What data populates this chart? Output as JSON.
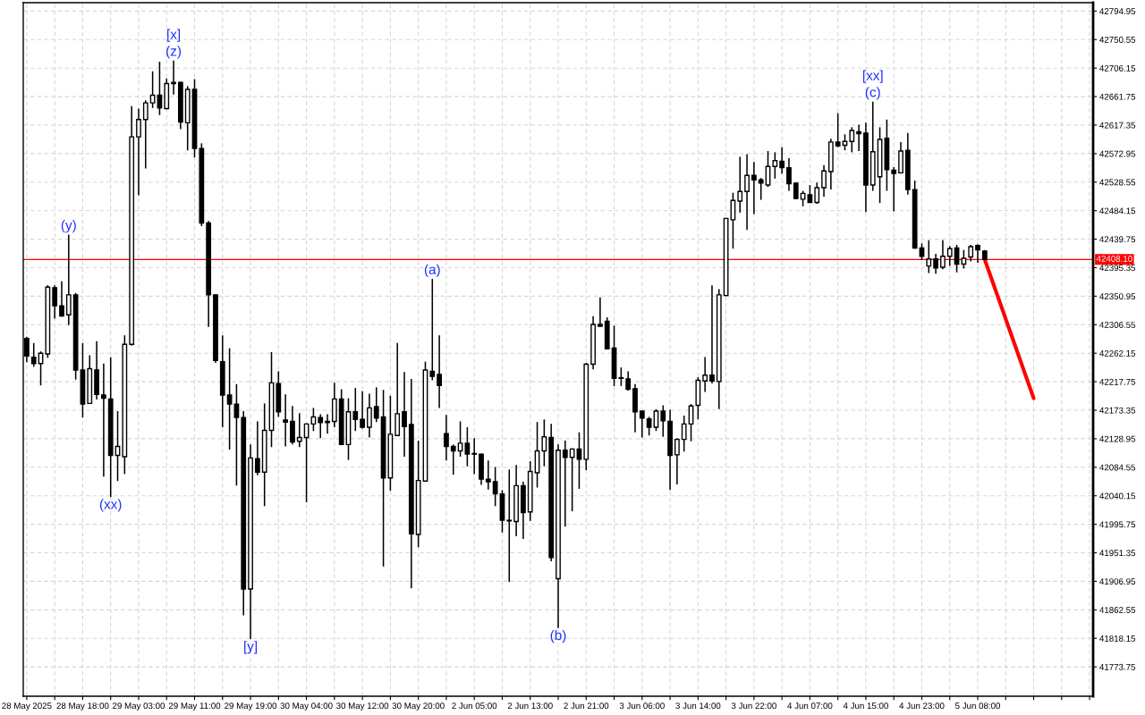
{
  "chart_data": {
    "type": "candlestick",
    "categories": [
      "28 May 2025",
      null,
      null,
      null,
      null,
      null,
      null,
      null,
      "28 May 18:00",
      null,
      null,
      null,
      null,
      null,
      null,
      null,
      "29 May 03:00",
      null,
      null,
      null,
      null,
      null,
      null,
      null,
      "29 May 11:00",
      null,
      null,
      null,
      null,
      null,
      null,
      null,
      "29 May 19:00",
      null,
      null,
      null,
      null,
      null,
      null,
      null,
      "30 May 04:00",
      null,
      null,
      null,
      null,
      null,
      null,
      null,
      "30 May 12:00",
      null,
      null,
      null,
      null,
      null,
      null,
      null,
      "30 May 20:00",
      null,
      null,
      null,
      null,
      null,
      null,
      null,
      "2 Jun 05:00",
      null,
      null,
      null,
      null,
      null,
      null,
      null,
      "2 Jun 13:00",
      null,
      null,
      null,
      null,
      null,
      null,
      null,
      "2 Jun 21:00",
      null,
      null,
      null,
      null,
      null,
      null,
      null,
      "3 Jun 06:00",
      null,
      null,
      null,
      null,
      null,
      null,
      null,
      "3 Jun 14:00",
      null,
      null,
      null,
      null,
      null,
      null,
      null,
      "3 Jun 22:00",
      null,
      null,
      null,
      null,
      null,
      null,
      null,
      "4 Jun 07:00",
      null,
      null,
      null,
      null,
      null,
      null,
      null,
      "4 Jun 15:00",
      null,
      null,
      null,
      null,
      null,
      null,
      null,
      "4 Jun 23:00",
      null,
      null,
      null,
      null,
      null,
      null,
      null,
      "5 Jun 08:00",
      null,
      null,
      null,
      null,
      null,
      null,
      null,
      null,
      null,
      null,
      null,
      null,
      null,
      null,
      null,
      null
    ],
    "ohlc": [
      [
        42285,
        42288,
        42248,
        42258
      ],
      [
        42256,
        42278,
        42241,
        42246
      ],
      [
        42246,
        42265,
        42212,
        42262
      ],
      [
        42261,
        42368,
        42255,
        42365
      ],
      [
        42364,
        42368,
        42316,
        42336
      ],
      [
        42336,
        42374,
        42319,
        42320
      ],
      [
        42322,
        42447,
        42306,
        42353
      ],
      [
        42353,
        42356,
        42221,
        42236
      ],
      [
        42236,
        42278,
        42162,
        42183
      ],
      [
        42184,
        42259,
        42183,
        42238
      ],
      [
        42236,
        42281,
        42190,
        42198
      ],
      [
        42197,
        42246,
        42070,
        42192
      ],
      [
        42191,
        42256,
        42038,
        42103
      ],
      [
        42103,
        42172,
        42063,
        42117
      ],
      [
        42101,
        42290,
        42074,
        42276
      ],
      [
        42276,
        42647,
        42274,
        42599
      ],
      [
        42599,
        42643,
        42508,
        42626
      ],
      [
        42626,
        42656,
        42550,
        42652
      ],
      [
        42652,
        42701,
        42644,
        42664
      ],
      [
        42664,
        42716,
        42633,
        42644
      ],
      [
        42643,
        42690,
        42642,
        42682
      ],
      [
        42682,
        42718,
        42665,
        42684
      ],
      [
        42684,
        42685,
        42611,
        42622
      ],
      [
        42621,
        42678,
        42578,
        42673
      ],
      [
        42673,
        42689,
        42567,
        42581
      ],
      [
        42581,
        42589,
        42460,
        42465
      ],
      [
        42465,
        42468,
        42303,
        42353
      ],
      [
        42353,
        42354,
        42247,
        42251
      ],
      [
        42249,
        42290,
        42147,
        42197
      ],
      [
        42197,
        42270,
        42112,
        42183
      ],
      [
        42183,
        42214,
        42056,
        42162
      ],
      [
        42162,
        42172,
        41854,
        41895
      ],
      [
        41895,
        42120,
        41817,
        42099
      ],
      [
        42098,
        42156,
        42072,
        42077
      ],
      [
        42077,
        42184,
        42024,
        42142
      ],
      [
        42142,
        42264,
        42116,
        42216
      ],
      [
        42215,
        42234,
        42163,
        42171
      ],
      [
        42158,
        42198,
        42117,
        42155
      ],
      [
        42156,
        42180,
        42120,
        42124
      ],
      [
        42125,
        42169,
        42116,
        42131
      ],
      [
        42131,
        42153,
        42030,
        42152
      ],
      [
        42152,
        42177,
        42141,
        42163
      ],
      [
        42162,
        42167,
        42130,
        42154
      ],
      [
        42156,
        42167,
        42137,
        42154
      ],
      [
        42156,
        42216,
        42147,
        42191
      ],
      [
        42191,
        42206,
        42119,
        42120
      ],
      [
        42120,
        42192,
        42096,
        42171
      ],
      [
        42171,
        42208,
        42141,
        42159
      ],
      [
        42159,
        42203,
        42145,
        42147
      ],
      [
        42147,
        42199,
        42131,
        42177
      ],
      [
        42179,
        42209,
        42155,
        42161
      ],
      [
        42163,
        42205,
        41930,
        42068
      ],
      [
        42068,
        42196,
        42048,
        42136
      ],
      [
        42134,
        42278,
        42133,
        42168
      ],
      [
        42171,
        42233,
        42101,
        42148
      ],
      [
        42151,
        42222,
        41896,
        41981
      ],
      [
        41980,
        42126,
        41960,
        42064
      ],
      [
        42063,
        42249,
        42062,
        42236
      ],
      [
        42234,
        42378,
        42220,
        42226
      ],
      [
        42229,
        42290,
        42177,
        42212
      ],
      [
        42137,
        42166,
        42095,
        42117
      ],
      [
        42117,
        42120,
        42073,
        42110
      ],
      [
        42110,
        42156,
        42101,
        42122
      ],
      [
        42122,
        42147,
        42086,
        42105
      ],
      [
        42106,
        42130,
        42074,
        42105
      ],
      [
        42105,
        42106,
        42057,
        42066
      ],
      [
        42066,
        42095,
        42050,
        42062
      ],
      [
        42062,
        42085,
        42024,
        42043
      ],
      [
        42043,
        42049,
        41983,
        42002
      ],
      [
        42002,
        42081,
        41906,
        42001
      ],
      [
        42000,
        42088,
        41977,
        42056
      ],
      [
        42056,
        42062,
        41973,
        42014
      ],
      [
        42015,
        42094,
        42001,
        42078
      ],
      [
        42076,
        42155,
        42053,
        42110
      ],
      [
        42110,
        42159,
        42086,
        42132
      ],
      [
        42131,
        42152,
        41938,
        41944
      ],
      [
        41911,
        42120,
        41834,
        42111
      ],
      [
        42111,
        42126,
        41992,
        42100
      ],
      [
        42100,
        42114,
        42016,
        42113
      ],
      [
        42113,
        42139,
        42051,
        42097
      ],
      [
        42097,
        42247,
        42080,
        42245
      ],
      [
        42245,
        42320,
        42237,
        42307
      ],
      [
        42307,
        42349,
        42304,
        42304
      ],
      [
        42312,
        42318,
        42269,
        42269
      ],
      [
        42270,
        42305,
        42211,
        42223
      ],
      [
        42224,
        42240,
        42211,
        42223
      ],
      [
        42222,
        42234,
        42204,
        42206
      ],
      [
        42207,
        42214,
        42139,
        42171
      ],
      [
        42172,
        42173,
        42131,
        42161
      ],
      [
        42160,
        42163,
        42134,
        42147
      ],
      [
        42147,
        42175,
        42141,
        42172
      ],
      [
        42172,
        42181,
        42132,
        42157
      ],
      [
        42156,
        42174,
        42049,
        42103
      ],
      [
        42104,
        42130,
        42058,
        42128
      ],
      [
        42128,
        42165,
        42109,
        42152
      ],
      [
        42152,
        42183,
        42125,
        42180
      ],
      [
        42181,
        42225,
        42159,
        42220
      ],
      [
        42219,
        42256,
        42202,
        42228
      ],
      [
        42228,
        42368,
        42215,
        42219
      ],
      [
        42218,
        42362,
        42175,
        42353
      ],
      [
        42352,
        42472,
        42351,
        42472
      ],
      [
        42470,
        42512,
        42425,
        42500
      ],
      [
        42499,
        42568,
        42481,
        42514
      ],
      [
        42514,
        42572,
        42454,
        42539
      ],
      [
        42539,
        42560,
        42479,
        42532
      ],
      [
        42532,
        42535,
        42501,
        42527
      ],
      [
        42524,
        42577,
        42521,
        42553
      ],
      [
        42553,
        42575,
        42534,
        42562
      ],
      [
        42561,
        42583,
        42542,
        42551
      ],
      [
        42551,
        42566,
        42515,
        42526
      ],
      [
        42527,
        42528,
        42502,
        42503
      ],
      [
        42502,
        42515,
        42491,
        42511
      ],
      [
        42509,
        42524,
        42497,
        42497
      ],
      [
        42497,
        42528,
        42495,
        42520
      ],
      [
        42520,
        42555,
        42506,
        42546
      ],
      [
        42545,
        42596,
        42517,
        42591
      ],
      [
        42591,
        42636,
        42583,
        42585
      ],
      [
        42586,
        42603,
        42578,
        42592
      ],
      [
        42592,
        42614,
        42575,
        42609
      ],
      [
        42607,
        42618,
        42577,
        42604
      ],
      [
        42605,
        42621,
        42482,
        42524
      ],
      [
        42524,
        42654,
        42515,
        42576
      ],
      [
        42537,
        42614,
        42496,
        42595
      ],
      [
        42597,
        42626,
        42515,
        42548
      ],
      [
        42547,
        42552,
        42483,
        42542
      ],
      [
        42543,
        42591,
        42542,
        42577
      ],
      [
        42578,
        42605,
        42509,
        42517
      ],
      [
        42517,
        42531,
        42425,
        42426
      ],
      [
        42426,
        42433,
        42407,
        42413
      ],
      [
        42398,
        42438,
        42387,
        42409
      ],
      [
        42409,
        42417,
        42386,
        42395
      ],
      [
        42396,
        42438,
        42393,
        42413
      ],
      [
        42413,
        42429,
        42398,
        42425
      ],
      [
        42426,
        42431,
        42388,
        42401
      ],
      [
        42401,
        42423,
        42394,
        42410
      ],
      [
        42412,
        42431,
        42405,
        42428
      ],
      [
        42430,
        42432,
        42403,
        42423
      ],
      [
        42421,
        42423,
        42407,
        42408
      ],
      null,
      null,
      null,
      null,
      null,
      null,
      null,
      null,
      null,
      null,
      null,
      null,
      null,
      null,
      null
    ],
    "series": [
      {
        "type": "line",
        "color": "#ff0000",
        "values": [
          null,
          null,
          null,
          null,
          null,
          null,
          null,
          null,
          null,
          null,
          null,
          null,
          null,
          null,
          null,
          null,
          null,
          null,
          null,
          null,
          null,
          null,
          null,
          null,
          null,
          null,
          null,
          null,
          null,
          null,
          null,
          null,
          null,
          null,
          null,
          null,
          null,
          null,
          null,
          null,
          null,
          null,
          null,
          null,
          null,
          null,
          null,
          null,
          null,
          null,
          null,
          null,
          null,
          null,
          null,
          null,
          null,
          null,
          null,
          null,
          null,
          null,
          null,
          null,
          null,
          null,
          null,
          null,
          null,
          null,
          null,
          null,
          null,
          null,
          null,
          null,
          null,
          null,
          null,
          null,
          null,
          null,
          null,
          null,
          null,
          null,
          null,
          null,
          null,
          null,
          null,
          null,
          null,
          null,
          null,
          null,
          null,
          null,
          null,
          null,
          null,
          null,
          null,
          null,
          null,
          null,
          null,
          null,
          null,
          null,
          null,
          null,
          null,
          null,
          null,
          null,
          null,
          null,
          null,
          null,
          null,
          null,
          null,
          null,
          null,
          null,
          null,
          null,
          null,
          null,
          null,
          null,
          null,
          null,
          null,
          null,
          null,
          42408,
          null,
          null,
          null,
          null,
          null,
          null,
          42192,
          null,
          null,
          null,
          null,
          null,
          null,
          null,
          null
        ]
      }
    ],
    "ref_lines": [
      {
        "axis": "y",
        "value": 42408.1,
        "label": "42408.10",
        "color": "#ff0000"
      }
    ],
    "annotations": [
      {
        "text": "(y)",
        "y": 42447
      },
      {
        "text": "(z)",
        "y": 42718
      },
      {
        "text": "[x]",
        "y": 42718
      },
      {
        "text": "(xx)",
        "y": 42038
      },
      {
        "text": "[y]",
        "y": 41817
      },
      {
        "text": "(a)",
        "y": 42378
      },
      {
        "text": "(b)",
        "y": 41834
      },
      {
        "text": "(c)",
        "y": 42654
      },
      {
        "text": "[xx]",
        "y": 42654
      }
    ],
    "ylim": [
      41728,
      42808
    ],
    "yticks": [
      41773.75,
      41818.15,
      41862.55,
      41906.95,
      41951.35,
      41995.75,
      42040.15,
      42084.55,
      42128.95,
      42173.35,
      42217.75,
      42262.15,
      42306.55,
      42350.95,
      42395.35,
      42439.75,
      42484.15,
      42528.55,
      42572.95,
      42617.35,
      42661.75,
      42706.15,
      42750.55,
      42794.95
    ],
    "grid": true
  }
}
